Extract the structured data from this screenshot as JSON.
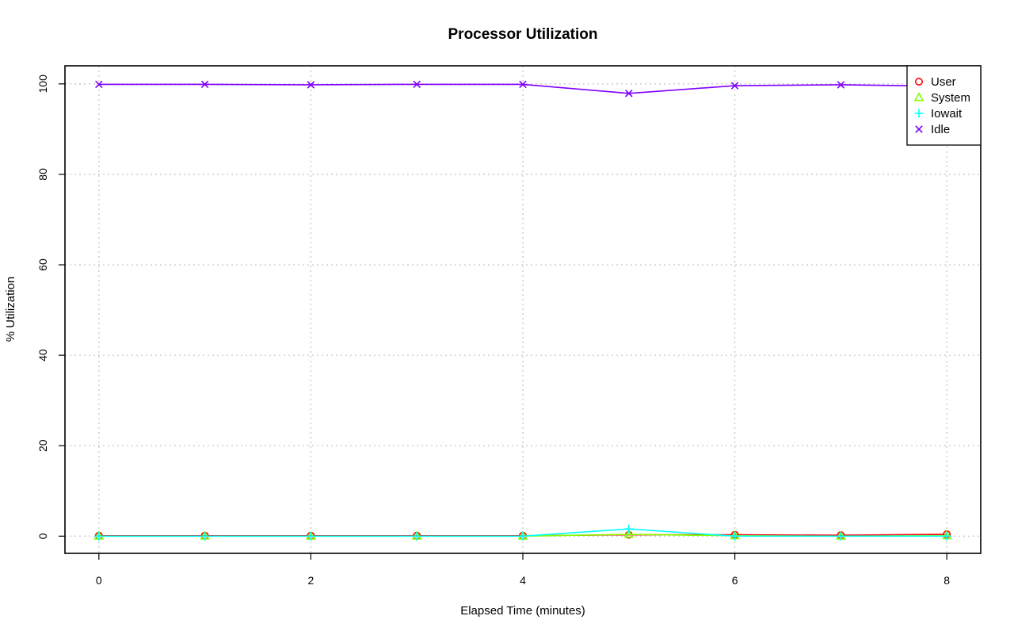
{
  "chart_data": {
    "type": "line",
    "title": "Processor Utilization",
    "xlabel": "Elapsed Time (minutes)",
    "ylabel": "% Utilization",
    "xlim": [
      -0.32,
      8.32
    ],
    "ylim": [
      -3.8,
      104
    ],
    "xticks": [
      0,
      2,
      4,
      6,
      8
    ],
    "yticks": [
      0,
      20,
      40,
      60,
      80,
      100
    ],
    "grid": true,
    "legend_position": "top-right",
    "x": [
      0,
      1,
      2,
      3,
      4,
      5,
      6,
      7,
      8
    ],
    "series": [
      {
        "name": "User",
        "color": "#ff0000",
        "marker": "circle",
        "values": [
          0.1,
          0.1,
          0.1,
          0.1,
          0.1,
          0.3,
          0.3,
          0.2,
          0.4
        ]
      },
      {
        "name": "System",
        "color": "#80ff00",
        "marker": "triangle",
        "values": [
          0.0,
          0.0,
          0.0,
          0.0,
          0.0,
          0.4,
          0.1,
          0.0,
          0.1
        ]
      },
      {
        "name": "Iowait",
        "color": "#00ffff",
        "marker": "plus",
        "values": [
          0.0,
          0.0,
          0.0,
          0.0,
          0.0,
          1.6,
          0.0,
          0.0,
          0.0
        ]
      },
      {
        "name": "Idle",
        "color": "#8000ff",
        "marker": "cross",
        "values": [
          99.9,
          99.9,
          99.8,
          99.9,
          99.9,
          97.9,
          99.6,
          99.8,
          99.5
        ]
      }
    ]
  }
}
